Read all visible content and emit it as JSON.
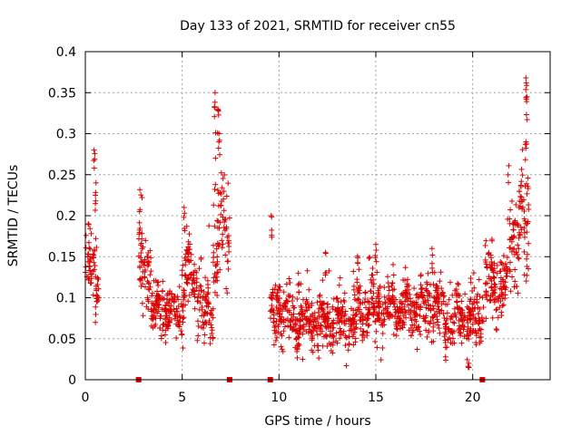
{
  "chart_data": {
    "type": "scatter",
    "title": "Day 133 of 2021, SRMTID for receiver cn55",
    "xlabel": "GPS time / hours",
    "ylabel": "SRMTID / TECUs",
    "xlim": [
      0,
      24
    ],
    "ylim": [
      0,
      0.4
    ],
    "xticks": [
      0,
      5,
      10,
      15,
      20
    ],
    "xtick_labels": [
      "0",
      "5",
      "10",
      "15",
      "20"
    ],
    "yticks": [
      0,
      0.05,
      0.1,
      0.15,
      0.2,
      0.25,
      0.3,
      0.35,
      0.4
    ],
    "ytick_labels": [
      "0",
      "0.05",
      "0.1",
      "0.15",
      "0.2",
      "0.25",
      "0.3",
      "0.35",
      "0.4"
    ],
    "grid": true,
    "marker": "+",
    "color": "#dd0000",
    "gap_markers_x": [
      2.75,
      7.45,
      9.55,
      20.5
    ],
    "series": [
      {
        "name": "SRMTID",
        "segments": [
          {
            "t_start": 0.0,
            "t_end": 0.7,
            "mean": 0.13,
            "spread": 0.04,
            "peaks": [
              [
                0.45,
                0.28
              ],
              [
                0.55,
                0.24
              ]
            ]
          },
          {
            "t_start": 2.75,
            "t_end": 3.4,
            "mean": 0.14,
            "spread": 0.04,
            "peaks": [
              [
                2.8,
                0.205
              ]
            ]
          },
          {
            "t_start": 3.4,
            "t_end": 5.0,
            "mean": 0.08,
            "spread": 0.025,
            "peaks": [
              [
                4.0,
                0.12
              ]
            ]
          },
          {
            "t_start": 5.0,
            "t_end": 6.0,
            "mean": 0.12,
            "spread": 0.04,
            "peaks": [
              [
                5.1,
                0.21
              ]
            ]
          },
          {
            "t_start": 6.0,
            "t_end": 6.6,
            "mean": 0.08,
            "spread": 0.03,
            "peaks": []
          },
          {
            "t_start": 6.6,
            "t_end": 7.45,
            "mean": 0.17,
            "spread": 0.07,
            "peaks": [
              [
                6.7,
                0.35
              ],
              [
                6.85,
                0.33
              ],
              [
                6.9,
                0.3
              ]
            ]
          },
          {
            "t_start": 9.55,
            "t_end": 10.5,
            "mean": 0.08,
            "spread": 0.03,
            "peaks": [
              [
                9.6,
                0.2
              ]
            ]
          },
          {
            "t_start": 10.5,
            "t_end": 12.0,
            "mean": 0.07,
            "spread": 0.03,
            "peaks": [
              [
                11.0,
                0.13
              ]
            ]
          },
          {
            "t_start": 12.0,
            "t_end": 14.0,
            "mean": 0.07,
            "spread": 0.03,
            "peaks": [
              [
                12.4,
                0.155
              ]
            ]
          },
          {
            "t_start": 14.0,
            "t_end": 16.0,
            "mean": 0.085,
            "spread": 0.03,
            "peaks": [
              [
                15.0,
                0.165
              ]
            ]
          },
          {
            "t_start": 16.0,
            "t_end": 18.5,
            "mean": 0.085,
            "spread": 0.03,
            "peaks": [
              [
                17.9,
                0.16
              ]
            ]
          },
          {
            "t_start": 18.5,
            "t_end": 20.5,
            "mean": 0.075,
            "spread": 0.03,
            "peaks": [
              [
                19.8,
                0.02
              ]
            ]
          },
          {
            "t_start": 20.5,
            "t_end": 21.8,
            "mean": 0.11,
            "spread": 0.035,
            "peaks": []
          },
          {
            "t_start": 21.8,
            "t_end": 22.9,
            "mean": 0.18,
            "spread": 0.05,
            "peaks": [
              [
                22.75,
                0.368
              ],
              [
                22.8,
                0.345
              ],
              [
                22.75,
                0.29
              ]
            ]
          }
        ]
      }
    ]
  }
}
